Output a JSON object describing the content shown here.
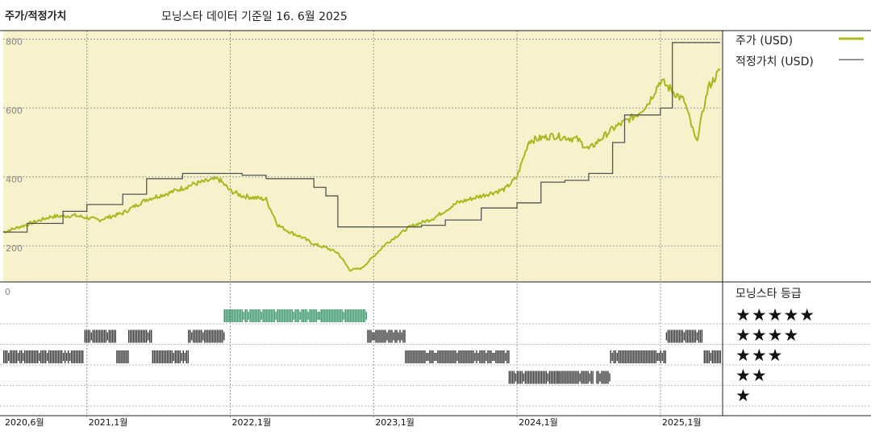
{
  "header": {
    "title": "주가/적정가치",
    "subtitle": "모닝스타 데이터 기준일 16. 6월 2025"
  },
  "legend": {
    "price_label": "주가 (USD)",
    "fair_value_label": "적정가치 (USD)",
    "rating_label": "모닝스타 등급"
  },
  "colors": {
    "plot_bg": "#f7f2cc",
    "price_line": "#a8b81e",
    "fair_value_line": "#555555",
    "rating_bar": "#3a3a3a",
    "rating5_bar": "#3d8a66",
    "grid": "#999999"
  },
  "chart_data": [
    {
      "type": "line",
      "y_ticks": [
        200,
        400,
        600,
        800
      ],
      "y_tick_labels": [
        "200",
        "400",
        "600",
        "800"
      ],
      "ylim": [
        100,
        820
      ],
      "x_range": [
        "2020-06",
        "2025-06"
      ],
      "x_ticks": [
        {
          "date": "2020-06",
          "label": "2020,6월"
        },
        {
          "date": "2021-01",
          "label": "2021,1월"
        },
        {
          "date": "2022-01",
          "label": "2022,1월"
        },
        {
          "date": "2023-01",
          "label": "2023,1월"
        },
        {
          "date": "2024-01",
          "label": "2024,1월"
        },
        {
          "date": "2025-01",
          "label": "2025,1월"
        }
      ],
      "series": [
        {
          "name": "주가 (USD)",
          "points": [
            [
              "2020-06",
              240
            ],
            [
              "2020-08",
              262
            ],
            [
              "2020-10",
              285
            ],
            [
              "2020-12",
              288
            ],
            [
              "2021-02",
              275
            ],
            [
              "2021-04",
              295
            ],
            [
              "2021-06",
              335
            ],
            [
              "2021-08",
              355
            ],
            [
              "2021-10",
              380
            ],
            [
              "2021-12",
              395
            ],
            [
              "2022-01",
              360
            ],
            [
              "2022-02",
              345
            ],
            [
              "2022-04",
              335
            ],
            [
              "2022-05",
              260
            ],
            [
              "2022-06",
              240
            ],
            [
              "2022-07",
              225
            ],
            [
              "2022-08",
              205
            ],
            [
              "2022-09",
              195
            ],
            [
              "2022-10",
              180
            ],
            [
              "2022-11",
              130
            ],
            [
              "2022-12",
              135
            ],
            [
              "2023-01",
              170
            ],
            [
              "2023-02",
              205
            ],
            [
              "2023-04",
              255
            ],
            [
              "2023-06",
              280
            ],
            [
              "2023-08",
              325
            ],
            [
              "2023-10",
              345
            ],
            [
              "2023-12",
              365
            ],
            [
              "2024-01",
              400
            ],
            [
              "2024-02",
              505
            ],
            [
              "2024-04",
              520
            ],
            [
              "2024-06",
              510
            ],
            [
              "2024-07",
              480
            ],
            [
              "2024-09",
              540
            ],
            [
              "2024-11",
              580
            ],
            [
              "2024-12",
              615
            ],
            [
              "2025-01",
              680
            ],
            [
              "2025-02",
              650
            ],
            [
              "2025-03",
              620
            ],
            [
              "2025-04",
              500
            ],
            [
              "2025-05",
              660
            ],
            [
              "2025-06",
              710
            ]
          ]
        },
        {
          "name": "적정가치 (USD)",
          "step": true,
          "points": [
            [
              "2020-06",
              240
            ],
            [
              "2020-08",
              265
            ],
            [
              "2020-11",
              300
            ],
            [
              "2021-01",
              320
            ],
            [
              "2021-04",
              350
            ],
            [
              "2021-06",
              395
            ],
            [
              "2021-09",
              410
            ],
            [
              "2022-02",
              405
            ],
            [
              "2022-04",
              395
            ],
            [
              "2022-08",
              370
            ],
            [
              "2022-09",
              345
            ],
            [
              "2022-10",
              255
            ],
            [
              "2023-03",
              255
            ],
            [
              "2023-05",
              260
            ],
            [
              "2023-07",
              275
            ],
            [
              "2023-10",
              310
            ],
            [
              "2024-01",
              325
            ],
            [
              "2024-03",
              385
            ],
            [
              "2024-05",
              390
            ],
            [
              "2024-07",
              410
            ],
            [
              "2024-09",
              500
            ],
            [
              "2024-10",
              580
            ],
            [
              "2025-01",
              600
            ],
            [
              "2025-02",
              790
            ],
            [
              "2025-06",
              790
            ]
          ]
        }
      ]
    },
    {
      "type": "rating-timeline",
      "y_tick_label": "0",
      "levels": [
        {
          "stars": 5,
          "glyph": "★★★★★"
        },
        {
          "stars": 4,
          "glyph": "★★★★"
        },
        {
          "stars": 3,
          "glyph": "★★★"
        },
        {
          "stars": 2,
          "glyph": "★★"
        },
        {
          "stars": 1,
          "glyph": "★"
        }
      ],
      "spans": [
        {
          "stars": 3,
          "from": "2020-06",
          "to": "2020-12-20"
        },
        {
          "stars": 4,
          "from": "2020-12-25",
          "to": "2021-03-15"
        },
        {
          "stars": 3,
          "from": "2021-03-15",
          "to": "2021-04-15"
        },
        {
          "stars": 4,
          "from": "2021-04-15",
          "to": "2021-06-15"
        },
        {
          "stars": 3,
          "from": "2021-06-15",
          "to": "2021-09-15"
        },
        {
          "stars": 4,
          "from": "2021-09-15",
          "to": "2021-12-15"
        },
        {
          "stars": 5,
          "from": "2021-12-15",
          "to": "2022-12-15"
        },
        {
          "stars": 4,
          "from": "2022-12-15",
          "to": "2023-03-20"
        },
        {
          "stars": 3,
          "from": "2023-03-20",
          "to": "2023-12-10"
        },
        {
          "stars": 2,
          "from": "2023-12-10",
          "to": "2024-04-15"
        },
        {
          "stars": 2,
          "from": "2024-04-15",
          "to": "2024-07-10"
        },
        {
          "stars": 2,
          "from": "2024-07-20",
          "to": "2024-08-25"
        },
        {
          "stars": 3,
          "from": "2024-08-25",
          "to": "2025-01-15"
        },
        {
          "stars": 4,
          "from": "2025-01-15",
          "to": "2025-04-15"
        },
        {
          "stars": 3,
          "from": "2025-04-20",
          "to": "2025-06-01"
        }
      ]
    }
  ]
}
